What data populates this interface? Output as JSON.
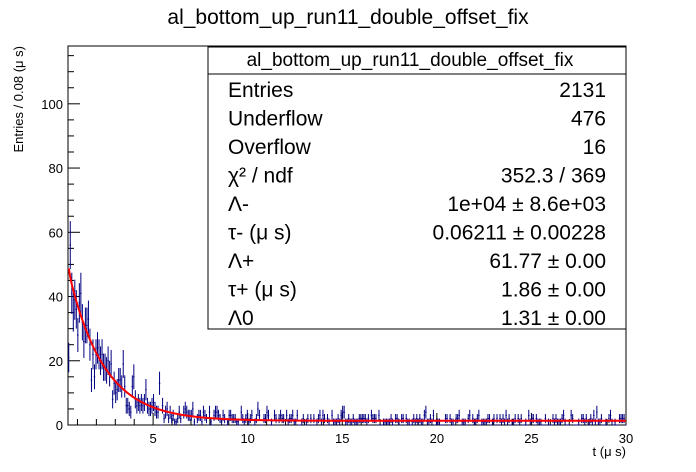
{
  "chart_data": {
    "type": "histogram_with_fit",
    "title": "al_bottom_up_run11_double_offset_fix",
    "xlabel": "t (μ s)",
    "ylabel": "Entries / 0.08 (μ s)",
    "xlim": [
      0.5,
      30
    ],
    "ylim": [
      0,
      118
    ],
    "x_ticks": [
      5,
      10,
      15,
      20,
      25,
      30
    ],
    "y_ticks": [
      0,
      20,
      40,
      60,
      80,
      100
    ],
    "bin_width": 0.08,
    "histogram_color": "#000080",
    "fit_color": "#ff0000",
    "fit_function": {
      "A_minus": 10000,
      "tau_minus": 0.06211,
      "A_plus": 61.77,
      "tau_plus": 1.86,
      "A0": 1.31
    },
    "stats_box": {
      "title": "al_bottom_up_run11_double_offset_fix",
      "rows": [
        {
          "label": "Entries",
          "value": "2131"
        },
        {
          "label": "Underflow",
          "value": "476"
        },
        {
          "label": "Overflow",
          "value": "16"
        },
        {
          "label": "χ² / ndf",
          "value": "352.3 / 369"
        },
        {
          "label": "Λ-",
          "value": "1e+04 ± 8.6e+03"
        },
        {
          "label": "τ- (μ s)",
          "value": "0.06211 ± 0.00228"
        },
        {
          "label": "Λ+",
          "value": "61.77 ± 0.00"
        },
        {
          "label": "τ+ (μ s)",
          "value": "1.86 ± 0.00"
        },
        {
          "label": "Λ0",
          "value": "1.31 ± 0.00"
        }
      ]
    }
  }
}
